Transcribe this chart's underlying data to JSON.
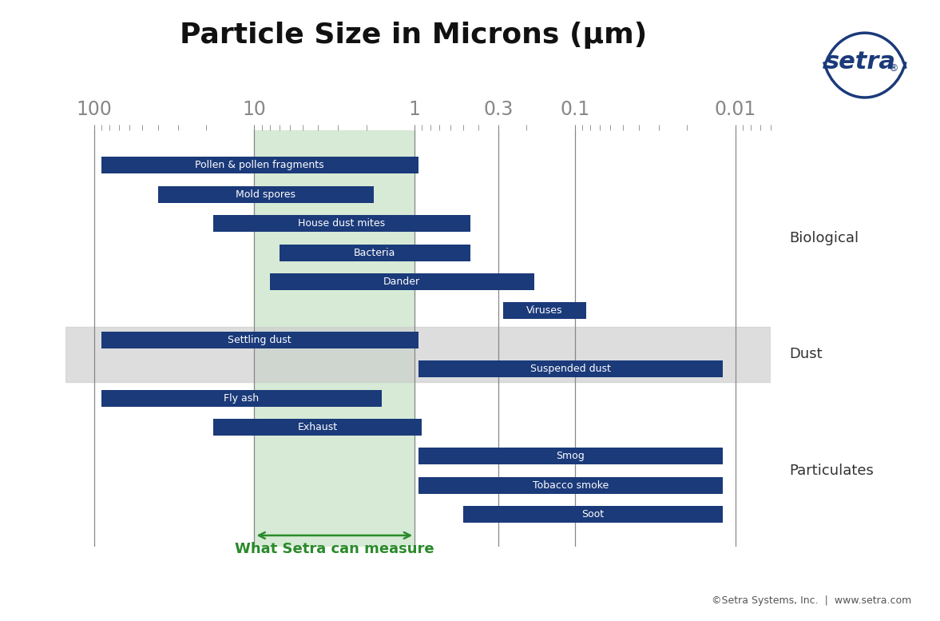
{
  "title": "Particle Size in Microns (μm)",
  "title_fontsize": 26,
  "bar_color": "#1b3a7a",
  "bar_height": 0.58,
  "background_color": "#ffffff",
  "green_region_xmin": 10,
  "green_region_xmax": 1,
  "green_color": "#d6ead6",
  "axis_label_color": "#888888",
  "tick_values": [
    100,
    10,
    1,
    0.3,
    0.1,
    0.01
  ],
  "tick_labels": [
    "100",
    "10",
    "1",
    "0.3",
    "0.1",
    "0.01"
  ],
  "setra_measure_label": "What Setra can measure",
  "setra_measure_color": "#2a8a2a",
  "copyright_text": "©Setra Systems, Inc.  |  www.setra.com",
  "bars": [
    {
      "label": "Pollen & pollen fragments",
      "xmin": 90,
      "xmax": 0.95,
      "y": 12
    },
    {
      "label": "Mold spores",
      "xmin": 40,
      "xmax": 1.8,
      "y": 11
    },
    {
      "label": "House dust mites",
      "xmin": 18,
      "xmax": 0.45,
      "y": 10
    },
    {
      "label": "Bacteria",
      "xmin": 7,
      "xmax": 0.45,
      "y": 9
    },
    {
      "label": "Dander",
      "xmin": 8,
      "xmax": 0.18,
      "y": 8
    },
    {
      "label": "Viruses",
      "xmin": 0.28,
      "xmax": 0.085,
      "y": 7
    },
    {
      "label": "Settling dust",
      "xmin": 90,
      "xmax": 0.95,
      "y": 6
    },
    {
      "label": "Suspended dust",
      "xmin": 0.95,
      "xmax": 0.012,
      "y": 5
    },
    {
      "label": "Fly ash",
      "xmin": 90,
      "xmax": 1.6,
      "y": 4
    },
    {
      "label": "Exhaust",
      "xmin": 18,
      "xmax": 0.9,
      "y": 3
    },
    {
      "label": "Smog",
      "xmin": 0.95,
      "xmax": 0.012,
      "y": 2
    },
    {
      "label": "Tobacco smoke",
      "xmin": 0.95,
      "xmax": 0.012,
      "y": 1
    },
    {
      "label": "Soot",
      "xmin": 0.5,
      "xmax": 0.012,
      "y": 0
    }
  ],
  "category_labels": [
    {
      "label": "Biological",
      "y_center": 9.5
    },
    {
      "label": "Dust",
      "y_center": 5.5
    },
    {
      "label": "Particulates",
      "y_center": 1.5
    }
  ],
  "dust_band_ymin": 4.55,
  "dust_band_ymax": 6.45,
  "xlim_left": 150,
  "xlim_right": 0.006,
  "ylim_bottom": -1.1,
  "ylim_top": 13.2
}
